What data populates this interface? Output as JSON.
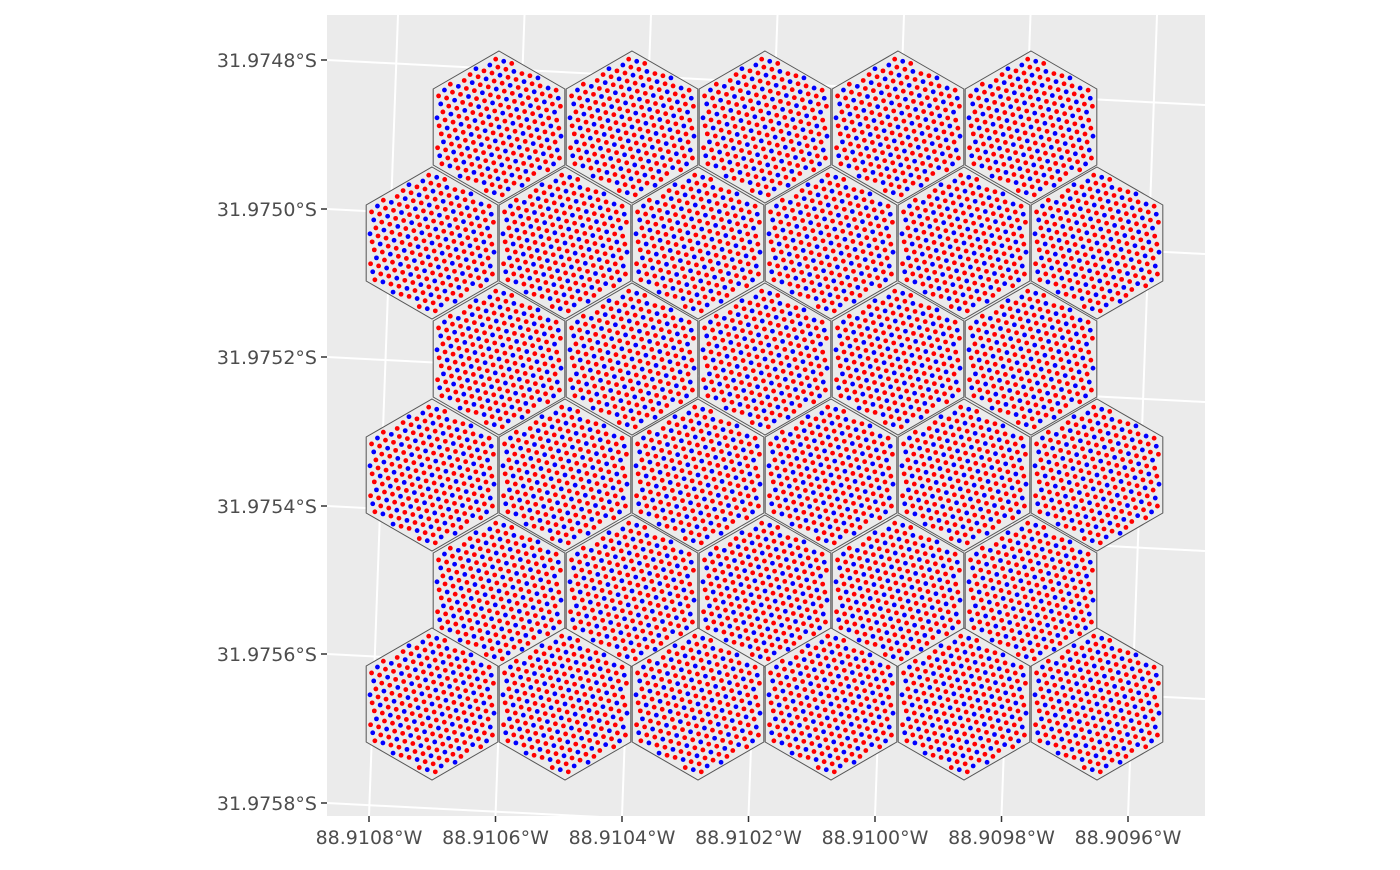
{
  "map": {
    "y_axis": {
      "labels": [
        "31.9748°S",
        "31.9750°S",
        "31.9752°S",
        "31.9754°S",
        "31.9756°S",
        "31.9758°S"
      ]
    },
    "x_axis": {
      "labels": [
        "88.9108°W",
        "88.9106°W",
        "88.9104°W",
        "88.9102°W",
        "88.9100°W",
        "88.9098°W",
        "88.9096°W"
      ]
    },
    "grid": true,
    "hexagon_layout": {
      "rows": [
        5,
        6,
        5,
        6,
        5,
        6
      ]
    },
    "colors": {
      "panel_background": "#ebebeb",
      "grid_line": "#ffffff",
      "hex_fill": "#ebebeb",
      "hex_stroke": "#555555",
      "point_red": "#ff0000",
      "point_blue": "#0000ff",
      "axis_text": "#4d4d4d"
    }
  }
}
